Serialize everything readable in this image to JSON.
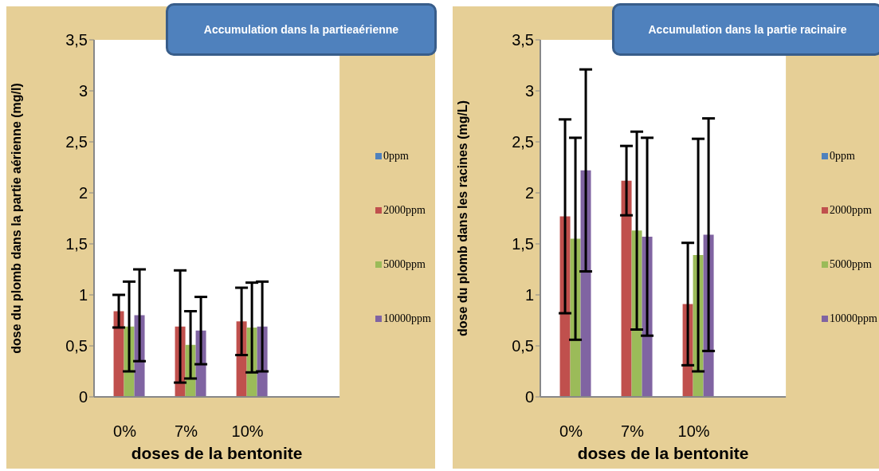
{
  "chart_data": [
    {
      "type": "bar",
      "title": "Accumulation dans la partieaérienne",
      "xlabel": "doses de la bentonite",
      "ylabel": "dose du plomb dans la partie aérienne (mg/l)",
      "categories": [
        "0%",
        "7%",
        "10%",
        null
      ],
      "series": [
        {
          "name": "0ppm",
          "color": "#4f81bd",
          "values": [
            0,
            0,
            0,
            null
          ]
        },
        {
          "name": "2000ppm",
          "color": "#c0504d",
          "values": [
            0.84,
            0.69,
            0.74,
            null
          ],
          "errors": [
            0.16,
            0.55,
            0.33,
            null
          ]
        },
        {
          "name": "5000ppm",
          "color": "#9bbb59",
          "values": [
            0.69,
            0.51,
            0.68,
            null
          ],
          "errors": [
            0.44,
            0.33,
            0.44,
            null
          ]
        },
        {
          "name": "10000ppm",
          "color": "#8064a2",
          "values": [
            0.8,
            0.65,
            0.69,
            null
          ],
          "errors": [
            0.45,
            0.33,
            0.44,
            null
          ]
        }
      ],
      "ylim": [
        0,
        3.5
      ],
      "yticks": [
        0,
        {
          "value": 0.5,
          "label": "0,5"
        },
        1,
        {
          "value": 1.5,
          "label": "1,5"
        },
        2,
        {
          "value": 2.5,
          "label": "2,5"
        },
        3,
        {
          "value": 3.5,
          "label": "3,5"
        }
      ],
      "grid": false,
      "legend": "right"
    },
    {
      "type": "bar",
      "title": "Accumulation dans la partie racinaire",
      "xlabel": "doses de la bentonite",
      "ylabel": "dose du plomb dans les racines (mg/L)",
      "categories": [
        "0%",
        "7%",
        "10%",
        null
      ],
      "series": [
        {
          "name": "0ppm",
          "color": "#4f81bd",
          "values": [
            0,
            0,
            0,
            null
          ]
        },
        {
          "name": "2000ppm",
          "color": "#c0504d",
          "values": [
            1.77,
            2.12,
            0.91,
            null
          ],
          "errors": [
            0.95,
            0.34,
            0.6,
            null
          ]
        },
        {
          "name": "5000ppm",
          "color": "#9bbb59",
          "values": [
            1.55,
            1.63,
            1.39,
            null
          ],
          "errors": [
            0.99,
            0.97,
            1.14,
            null
          ]
        },
        {
          "name": "10000ppm",
          "color": "#8064a2",
          "values": [
            2.22,
            1.57,
            1.59,
            null
          ],
          "errors": [
            0.99,
            0.97,
            1.14,
            null
          ]
        }
      ],
      "ylim": [
        0,
        3.5
      ],
      "yticks": [
        0,
        {
          "value": 0.5,
          "label": "0,5"
        },
        1,
        {
          "value": 1.5,
          "label": "1,5"
        },
        2,
        {
          "value": 2.5,
          "label": "2,5"
        },
        3,
        {
          "value": 3.5,
          "label": "3,5"
        }
      ],
      "grid": false,
      "legend": "right"
    }
  ]
}
